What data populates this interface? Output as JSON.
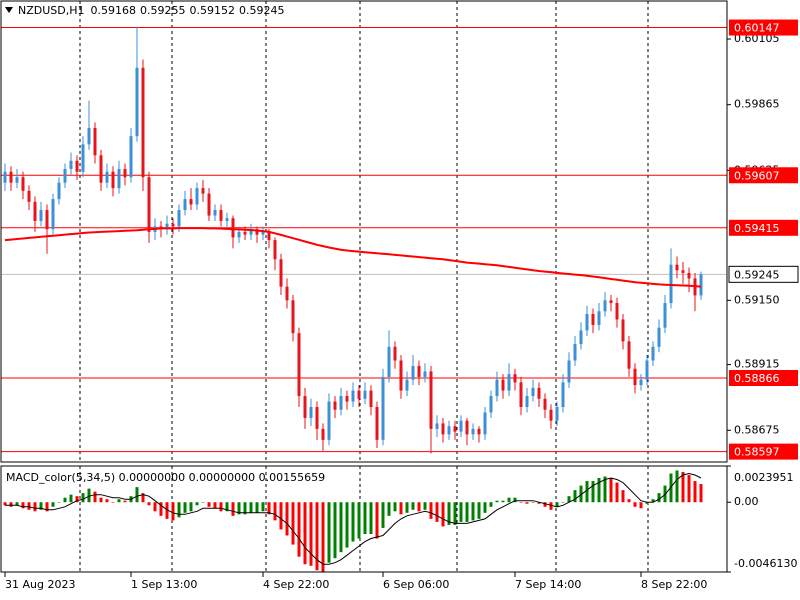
{
  "chart_data": {
    "type": "candlestick",
    "symbol": "NZDUSD,H1",
    "categories": [
      "31 Aug 2023",
      null,
      null,
      null,
      null,
      null,
      null,
      null,
      null,
      null,
      null,
      null,
      null,
      null,
      null,
      null,
      null,
      null,
      null,
      null,
      null,
      "1 Sep 13:00",
      null,
      null,
      null,
      null,
      null,
      null,
      null,
      null,
      null,
      null,
      null,
      null,
      null,
      null,
      null,
      null,
      null,
      null,
      null,
      null,
      null,
      "4 Sep 22:00",
      null,
      null,
      null,
      null,
      null,
      null,
      null,
      null,
      null,
      null,
      null,
      null,
      null,
      null,
      null,
      null,
      null,
      null,
      null,
      "6 Sep 06:00",
      null,
      null,
      null,
      null,
      null,
      null,
      null,
      null,
      null,
      null,
      null,
      null,
      null,
      null,
      null,
      null,
      null,
      null,
      null,
      null,
      null,
      "7 Sep 14:00",
      null,
      null,
      null,
      null,
      null,
      null,
      null,
      null,
      null,
      null,
      null,
      null,
      null,
      null,
      null,
      null,
      null,
      null,
      null,
      null,
      "8 Sep 22:00",
      null,
      null,
      null,
      null,
      null,
      null,
      null,
      null,
      null,
      null
    ],
    "ohlc": [
      [
        0.5958,
        0.5965,
        0.5955,
        0.5962
      ],
      [
        0.5962,
        0.5964,
        0.5955,
        0.5958
      ],
      [
        0.5958,
        0.5963,
        0.5956,
        0.596
      ],
      [
        0.596,
        0.5962,
        0.5952,
        0.5955
      ],
      [
        0.5955,
        0.5957,
        0.5948,
        0.5951
      ],
      [
        0.5951,
        0.5953,
        0.594,
        0.5944
      ],
      [
        0.5944,
        0.5951,
        0.5942,
        0.5948
      ],
      [
        0.5948,
        0.595,
        0.5932,
        0.5941
      ],
      [
        0.5941,
        0.5954,
        0.5939,
        0.5952
      ],
      [
        0.5952,
        0.596,
        0.595,
        0.5958
      ],
      [
        0.5958,
        0.5965,
        0.5956,
        0.5963
      ],
      [
        0.5963,
        0.5969,
        0.5961,
        0.5966
      ],
      [
        0.5966,
        0.5968,
        0.5959,
        0.5962
      ],
      [
        0.5962,
        0.5975,
        0.596,
        0.5972
      ],
      [
        0.5972,
        0.5988,
        0.597,
        0.5978
      ],
      [
        0.5978,
        0.598,
        0.5965,
        0.5968
      ],
      [
        0.5968,
        0.597,
        0.5955,
        0.5958
      ],
      [
        0.5958,
        0.5965,
        0.5956,
        0.5962
      ],
      [
        0.5962,
        0.5964,
        0.5953,
        0.5956
      ],
      [
        0.5956,
        0.5966,
        0.5954,
        0.5963
      ],
      [
        0.5963,
        0.5965,
        0.5957,
        0.596
      ],
      [
        0.596,
        0.5978,
        0.5958,
        0.5975
      ],
      [
        0.5975,
        0.6015,
        0.5973,
        0.6
      ],
      [
        0.6,
        0.6003,
        0.5955,
        0.596
      ],
      [
        0.596,
        0.5962,
        0.5936,
        0.594
      ],
      [
        0.594,
        0.5945,
        0.5937,
        0.5942
      ],
      [
        0.5942,
        0.5944,
        0.5938,
        0.5941
      ],
      [
        0.5941,
        0.5946,
        0.5939,
        0.5943
      ],
      [
        0.5943,
        0.5945,
        0.5939,
        0.5942
      ],
      [
        0.5942,
        0.595,
        0.594,
        0.5948
      ],
      [
        0.5948,
        0.5955,
        0.5946,
        0.5952
      ],
      [
        0.5952,
        0.5956,
        0.5948,
        0.595
      ],
      [
        0.595,
        0.5958,
        0.5948,
        0.5956
      ],
      [
        0.5956,
        0.5959,
        0.5951,
        0.5954
      ],
      [
        0.5954,
        0.5956,
        0.5944,
        0.5946
      ],
      [
        0.5946,
        0.595,
        0.5944,
        0.5948
      ],
      [
        0.5948,
        0.595,
        0.5942,
        0.5944
      ],
      [
        0.5944,
        0.5947,
        0.5941,
        0.5945
      ],
      [
        0.5945,
        0.5946,
        0.5934,
        0.5938
      ],
      [
        0.5938,
        0.5942,
        0.5936,
        0.594
      ],
      [
        0.594,
        0.5942,
        0.5937,
        0.5939
      ],
      [
        0.5939,
        0.5943,
        0.5937,
        0.5941
      ],
      [
        0.5941,
        0.5942,
        0.5936,
        0.5939
      ],
      [
        0.5939,
        0.5942,
        0.5937,
        0.594
      ],
      [
        0.594,
        0.5941,
        0.5934,
        0.5937
      ],
      [
        0.5937,
        0.5938,
        0.5926,
        0.593
      ],
      [
        0.593,
        0.5932,
        0.5917,
        0.592
      ],
      [
        0.592,
        0.5923,
        0.5912,
        0.5915
      ],
      [
        0.5915,
        0.5917,
        0.59,
        0.5903
      ],
      [
        0.5903,
        0.5905,
        0.5876,
        0.588
      ],
      [
        0.588,
        0.5883,
        0.5868,
        0.5872
      ],
      [
        0.5872,
        0.5879,
        0.5869,
        0.5876
      ],
      [
        0.5876,
        0.5878,
        0.5864,
        0.5868
      ],
      [
        0.5868,
        0.587,
        0.586,
        0.5864
      ],
      [
        0.5864,
        0.5881,
        0.5862,
        0.5878
      ],
      [
        0.5878,
        0.588,
        0.5872,
        0.5875
      ],
      [
        0.5875,
        0.5883,
        0.5873,
        0.588
      ],
      [
        0.588,
        0.5882,
        0.5875,
        0.5878
      ],
      [
        0.5878,
        0.5885,
        0.5876,
        0.5882
      ],
      [
        0.5882,
        0.5884,
        0.5876,
        0.5879
      ],
      [
        0.5879,
        0.5885,
        0.5877,
        0.5882
      ],
      [
        0.5882,
        0.5884,
        0.5873,
        0.5876
      ],
      [
        0.5876,
        0.5878,
        0.5861,
        0.5864
      ],
      [
        0.5864,
        0.589,
        0.5862,
        0.5887
      ],
      [
        0.5887,
        0.5904,
        0.5885,
        0.5898
      ],
      [
        0.5898,
        0.59,
        0.589,
        0.5893
      ],
      [
        0.5893,
        0.5895,
        0.5879,
        0.5882
      ],
      [
        0.5882,
        0.5889,
        0.588,
        0.5886
      ],
      [
        0.5886,
        0.5895,
        0.5884,
        0.5891
      ],
      [
        0.5891,
        0.5893,
        0.5884,
        0.5887
      ],
      [
        0.5887,
        0.5892,
        0.5885,
        0.5889
      ],
      [
        0.5889,
        0.5891,
        0.5859,
        0.5868
      ],
      [
        0.5868,
        0.5873,
        0.5865,
        0.587
      ],
      [
        0.587,
        0.5872,
        0.5863,
        0.5866
      ],
      [
        0.5866,
        0.5871,
        0.5864,
        0.5869
      ],
      [
        0.5869,
        0.5871,
        0.5864,
        0.5867
      ],
      [
        0.5867,
        0.5873,
        0.5865,
        0.5871
      ],
      [
        0.5871,
        0.5872,
        0.5862,
        0.5866
      ],
      [
        0.5866,
        0.587,
        0.5864,
        0.5868
      ],
      [
        0.5868,
        0.5869,
        0.5863,
        0.5866
      ],
      [
        0.5866,
        0.5876,
        0.5864,
        0.5874
      ],
      [
        0.5874,
        0.5882,
        0.5872,
        0.588
      ],
      [
        0.588,
        0.5889,
        0.5878,
        0.5886
      ],
      [
        0.5886,
        0.5888,
        0.5879,
        0.5882
      ],
      [
        0.5882,
        0.5892,
        0.588,
        0.5888
      ],
      [
        0.5888,
        0.589,
        0.5882,
        0.5885
      ],
      [
        0.5885,
        0.5887,
        0.5873,
        0.5876
      ],
      [
        0.5876,
        0.5883,
        0.5874,
        0.588
      ],
      [
        0.588,
        0.5886,
        0.5878,
        0.5883
      ],
      [
        0.5883,
        0.5885,
        0.5876,
        0.5879
      ],
      [
        0.5879,
        0.5881,
        0.5872,
        0.5875
      ],
      [
        0.5875,
        0.5877,
        0.5868,
        0.5871
      ],
      [
        0.5871,
        0.5878,
        0.5869,
        0.5876
      ],
      [
        0.5876,
        0.5888,
        0.5874,
        0.5885
      ],
      [
        0.5885,
        0.5896,
        0.5883,
        0.5893
      ],
      [
        0.5893,
        0.5902,
        0.5891,
        0.5899
      ],
      [
        0.5899,
        0.5907,
        0.5897,
        0.5904
      ],
      [
        0.5904,
        0.5913,
        0.5902,
        0.591
      ],
      [
        0.591,
        0.5912,
        0.5903,
        0.5906
      ],
      [
        0.5906,
        0.5914,
        0.5904,
        0.5911
      ],
      [
        0.5911,
        0.5918,
        0.5909,
        0.5915
      ],
      [
        0.5915,
        0.5917,
        0.5911,
        0.5914
      ],
      [
        0.5914,
        0.5916,
        0.5905,
        0.5908
      ],
      [
        0.5908,
        0.591,
        0.5897,
        0.59
      ],
      [
        0.59,
        0.5902,
        0.5887,
        0.589
      ],
      [
        0.589,
        0.5892,
        0.5881,
        0.5884
      ],
      [
        0.5884,
        0.5888,
        0.5882,
        0.5886
      ],
      [
        0.5886,
        0.5895,
        0.5884,
        0.5893
      ],
      [
        0.5893,
        0.59,
        0.5891,
        0.5898
      ],
      [
        0.5898,
        0.5908,
        0.5896,
        0.5905
      ],
      [
        0.5905,
        0.5917,
        0.5903,
        0.5914
      ],
      [
        0.5914,
        0.5934,
        0.5912,
        0.5928
      ],
      [
        0.5928,
        0.5931,
        0.5923,
        0.5926
      ],
      [
        0.5926,
        0.5929,
        0.5921,
        0.5925
      ],
      [
        0.5925,
        0.5927,
        0.5918,
        0.5923
      ],
      [
        0.5923,
        0.5925,
        0.5911,
        0.59168
      ],
      [
        0.59168,
        0.59255,
        0.59152,
        0.59245
      ]
    ],
    "up_color": "#3d8fd8",
    "down_color": "#e8141c",
    "ylim": [
      0.58559,
      0.60244
    ],
    "yticks": [
      0.60105,
      0.59865,
      0.59625,
      {
        "value": 0.5915,
        "label": "0.59150"
      },
      0.58915,
      0.58675
    ],
    "moving_average": {
      "color": "#ff0000",
      "values": [
        0.5937,
        0.59372,
        0.59374,
        0.59376,
        0.59378,
        0.5938,
        0.59382,
        0.59384,
        0.59386,
        0.59388,
        0.5939,
        0.59392,
        0.59394,
        0.59396,
        0.59398,
        0.59399,
        0.594,
        0.59401,
        0.59402,
        0.59403,
        0.59404,
        0.59405,
        0.59406,
        0.59408,
        0.5941,
        0.59411,
        0.59413,
        0.59413,
        0.59413,
        0.59414,
        0.59414,
        0.59414,
        0.59414,
        0.59414,
        0.59413,
        0.59413,
        0.59412,
        0.59411,
        0.5941,
        0.59409,
        0.59408,
        0.59407,
        0.59405,
        0.59403,
        0.594,
        0.59395,
        0.59389,
        0.59383,
        0.59377,
        0.59371,
        0.59365,
        0.59359,
        0.59353,
        0.59348,
        0.59343,
        0.59339,
        0.59335,
        0.59332,
        0.5933,
        0.59328,
        0.59326,
        0.59324,
        0.59322,
        0.5932,
        0.59318,
        0.59316,
        0.59314,
        0.59312,
        0.5931,
        0.59308,
        0.59306,
        0.59304,
        0.59302,
        0.593,
        0.59297,
        0.59294,
        0.59291,
        0.59288,
        0.59286,
        0.59284,
        0.59282,
        0.5928,
        0.59278,
        0.59275,
        0.59272,
        0.59269,
        0.59266,
        0.59263,
        0.5926,
        0.59257,
        0.59255,
        0.59253,
        0.5925,
        0.59248,
        0.59246,
        0.59244,
        0.59242,
        0.5924,
        0.59237,
        0.59234,
        0.59231,
        0.59228,
        0.59225,
        0.59222,
        0.59219,
        0.59216,
        0.59214,
        0.59212,
        0.5921,
        0.59208,
        0.59207,
        0.59206,
        0.59205,
        0.59204,
        0.59203,
        0.59202,
        0.592
      ]
    },
    "levels": [
      {
        "value": 0.60147,
        "color": "#ff0000"
      },
      {
        "value": 0.59607,
        "color": "#ff0000"
      },
      {
        "value": 0.59415,
        "color": "#ff0000"
      },
      {
        "value": 0.58866,
        "color": "#ff0000"
      },
      {
        "value": 0.58597,
        "color": "#ff0000"
      }
    ],
    "current_price_color": "#c0c0c0",
    "macd": {
      "title": "MACD_color(5,34,5) 0.00000000 0.00000000 0.00155659",
      "up_color": "#008000",
      "down_color": "#ff0000",
      "values": [
        -0.0002,
        -0.0003,
        -0.0002,
        -0.0004,
        -0.0005,
        -0.0006,
        -0.0005,
        -0.0006,
        -0.0003,
        0,
        0.0003,
        0.0005,
        0.0004,
        0.0006,
        0.0009,
        0.0007,
        0.0003,
        0.0002,
        0,
        0.0002,
        0.0001,
        0.0004,
        0.001,
        0.0006,
        -0.0002,
        -0.0006,
        -0.0009,
        -0.0011,
        -0.0012,
        -0.001,
        -0.0007,
        -0.0006,
        -0.0002,
        0,
        -0.0003,
        -0.0004,
        -0.0006,
        -0.0006,
        -0.0009,
        -0.0008,
        -0.0008,
        -0.0007,
        -0.0007,
        -0.0006,
        -0.0008,
        -0.0012,
        -0.0018,
        -0.0022,
        -0.0028,
        -0.0036,
        -0.0041,
        -0.0042,
        -0.0045,
        -0.0046,
        -0.004,
        -0.0037,
        -0.0033,
        -0.003,
        -0.0026,
        -0.0024,
        -0.0021,
        -0.0021,
        -0.0024,
        -0.0017,
        -0.0009,
        -0.0006,
        -0.0008,
        -0.0007,
        -0.0005,
        -0.0006,
        -0.0005,
        -0.0011,
        -0.0013,
        -0.0016,
        -0.0015,
        -0.0015,
        -0.0013,
        -0.0013,
        -0.0012,
        -0.0011,
        -0.0007,
        -0.0003,
        0.0001,
        0.0001,
        0.0003,
        0.0003,
        0,
        -0.0001,
        0,
        -0.0001,
        -0.0003,
        -0.0005,
        -0.0003,
        0,
        0.0004,
        0.0008,
        0.0011,
        0.0014,
        0.0014,
        0.0016,
        0.0017,
        0.0016,
        0.0013,
        0.0008,
        0.0002,
        -0.0003,
        -0.0004,
        -0.0001,
        0.0002,
        0.0006,
        0.0011,
        0.0019,
        0.0021,
        0.002,
        0.0018,
        0.0014,
        0.0012
      ],
      "signal": {
        "color": "#000000",
        "values": [
          -0.0002,
          -0.0002,
          -0.0002,
          -0.0003,
          -0.0003,
          -0.0004,
          -0.0004,
          -0.0005,
          -0.0005,
          -0.0004,
          -0.0003,
          -0.0001,
          0.0001,
          0.0002,
          0.0004,
          0.0005,
          0.0005,
          0.0004,
          0.0003,
          0.0003,
          0.0002,
          0.0002,
          0.0004,
          0.0005,
          0.0004,
          0.0001,
          -0.0002,
          -0.0005,
          -0.0007,
          -0.0008,
          -0.0008,
          -0.0007,
          -0.0006,
          -0.0004,
          -0.0004,
          -0.0004,
          -0.0004,
          -0.0005,
          -0.0006,
          -0.0007,
          -0.0007,
          -0.0007,
          -0.0007,
          -0.0007,
          -0.0007,
          -0.0008,
          -0.0011,
          -0.0014,
          -0.0019,
          -0.0024,
          -0.003,
          -0.0034,
          -0.0038,
          -0.0041,
          -0.0041,
          -0.004,
          -0.0038,
          -0.0035,
          -0.0032,
          -0.0029,
          -0.0026,
          -0.0024,
          -0.0023,
          -0.0022,
          -0.0018,
          -0.0014,
          -0.0011,
          -0.0009,
          -0.0008,
          -0.0007,
          -0.0006,
          -0.0007,
          -0.0009,
          -0.0011,
          -0.0013,
          -0.0014,
          -0.0014,
          -0.0014,
          -0.0013,
          -0.0012,
          -0.0011,
          -0.0008,
          -0.0005,
          -0.0003,
          -0.0001,
          0.0001,
          0.0001,
          0.0001,
          0.0001,
          0,
          -0.0001,
          -0.0002,
          -0.0003,
          -0.0002,
          0,
          0.0002,
          0.0005,
          0.0008,
          0.0011,
          0.0013,
          0.0015,
          0.0016,
          0.0015,
          0.0013,
          0.0009,
          0.0005,
          0.0001,
          0,
          0,
          0.0002,
          0.0005,
          0.001,
          0.0015,
          0.0018,
          0.0019,
          0.0018,
          0.0016
        ]
      },
      "ylim": [
        -0.004613,
        0.0023951
      ],
      "yticks": [
        0.0023951,
        {
          "value": 0,
          "label": "0.00"
        },
        {
          "value": -0.004613,
          "label": "-0.0046130"
        }
      ]
    }
  }
}
